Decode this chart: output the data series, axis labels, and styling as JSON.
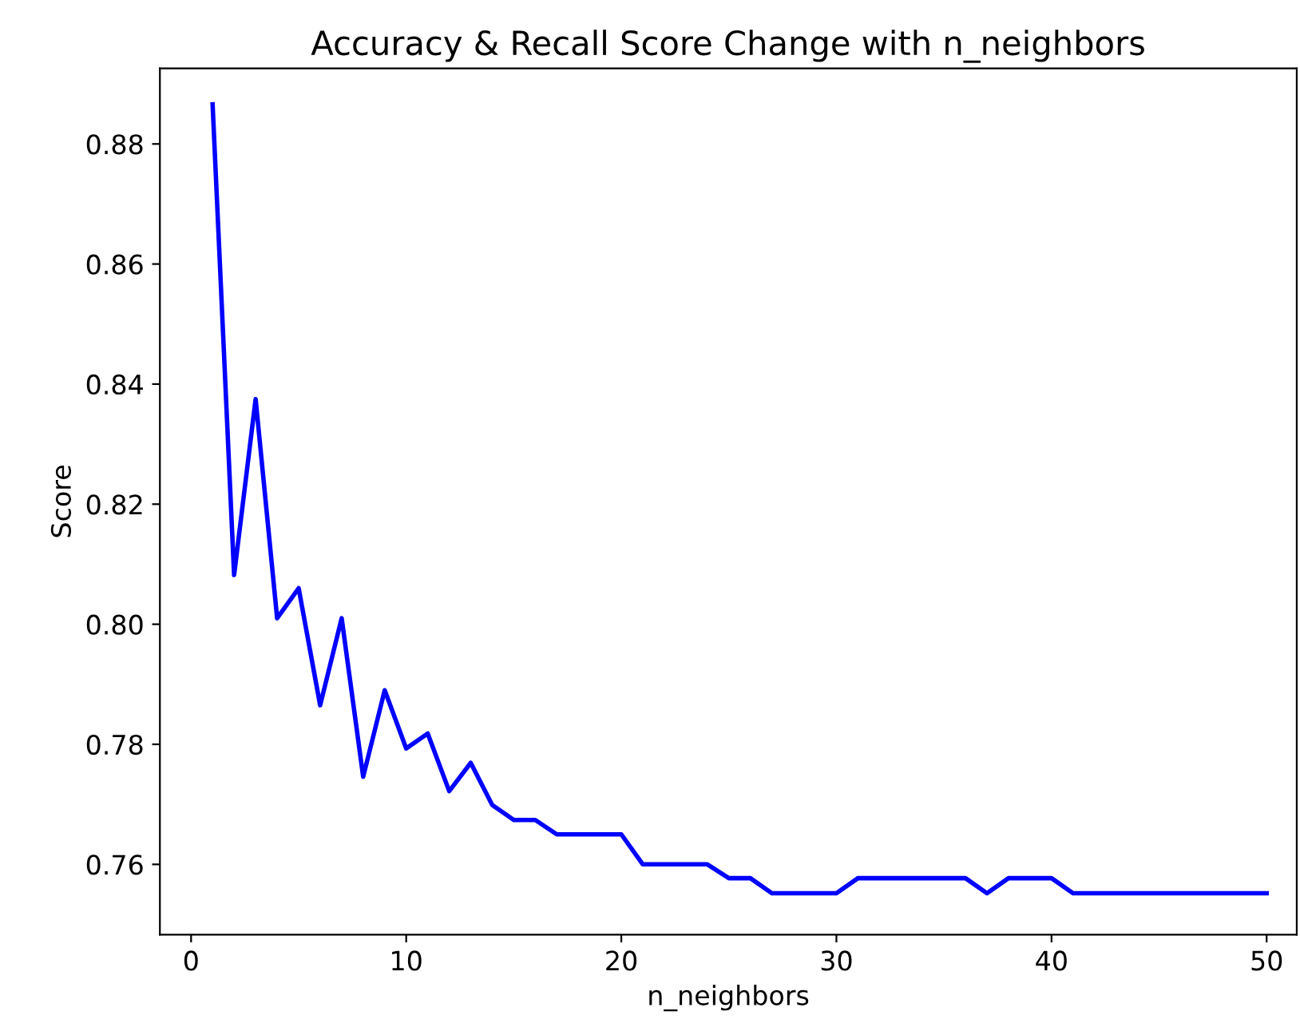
{
  "chart_data": {
    "type": "line",
    "title": "Accuracy & Recall Score Change with n_neighbors",
    "xlabel": "n_neighbors",
    "ylabel": "Score",
    "x": [
      1,
      2,
      3,
      4,
      5,
      6,
      7,
      8,
      9,
      10,
      11,
      12,
      13,
      14,
      15,
      16,
      17,
      18,
      19,
      20,
      21,
      22,
      23,
      24,
      25,
      26,
      27,
      28,
      29,
      30,
      31,
      32,
      33,
      34,
      35,
      36,
      37,
      38,
      39,
      40,
      41,
      42,
      43,
      44,
      45,
      46,
      47,
      48,
      49,
      50
    ],
    "series": [
      {
        "color": "#0000ff",
        "values": [
          0.8866,
          0.8082,
          0.8375,
          0.801,
          0.806,
          0.7865,
          0.801,
          0.7746,
          0.789,
          0.7793,
          0.7818,
          0.7722,
          0.7769,
          0.7699,
          0.7674,
          0.7674,
          0.765,
          0.765,
          0.765,
          0.765,
          0.76,
          0.76,
          0.76,
          0.76,
          0.7577,
          0.7577,
          0.7552,
          0.7552,
          0.7552,
          0.7552,
          0.7577,
          0.7577,
          0.7577,
          0.7577,
          0.7577,
          0.7577,
          0.7552,
          0.7577,
          0.7577,
          0.7577,
          0.7552,
          0.7552,
          0.7552,
          0.7552,
          0.7552,
          0.7552,
          0.7552,
          0.7552,
          0.7552,
          0.7552
        ]
      }
    ],
    "xlim": [
      -1.45,
      51.4
    ],
    "ylim": [
      0.7483,
      0.8926
    ],
    "xticks": [
      0,
      10,
      20,
      30,
      40,
      50
    ],
    "yticks": [
      {
        "value": 0.76,
        "label": "0.76"
      },
      {
        "value": 0.78,
        "label": "0.78"
      },
      {
        "value": 0.8,
        "label": "0.80"
      },
      {
        "value": 0.82,
        "label": "0.82"
      },
      {
        "value": 0.84,
        "label": "0.84"
      },
      {
        "value": 0.86,
        "label": "0.86"
      },
      {
        "value": 0.88,
        "label": "0.88"
      }
    ],
    "grid": false,
    "marker": "none",
    "line_style": "solid"
  }
}
